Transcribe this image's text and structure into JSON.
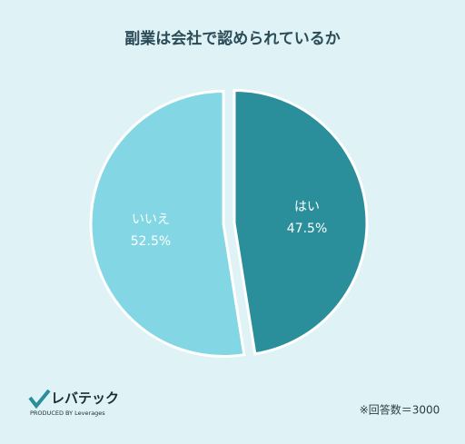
{
  "chart_data": {
    "type": "pie",
    "title": "副業は会社で認められているか",
    "categories": [
      "はい",
      "いいえ"
    ],
    "values": [
      47.5,
      52.5
    ],
    "value_labels": [
      "47.5%",
      "52.5%"
    ],
    "colors": [
      "#2b8f9b",
      "#83d7e4"
    ],
    "annotation": "※回答数＝3000",
    "logo_text": "レバテック",
    "logo_subtext": "PRODUCED BY Leverages"
  }
}
